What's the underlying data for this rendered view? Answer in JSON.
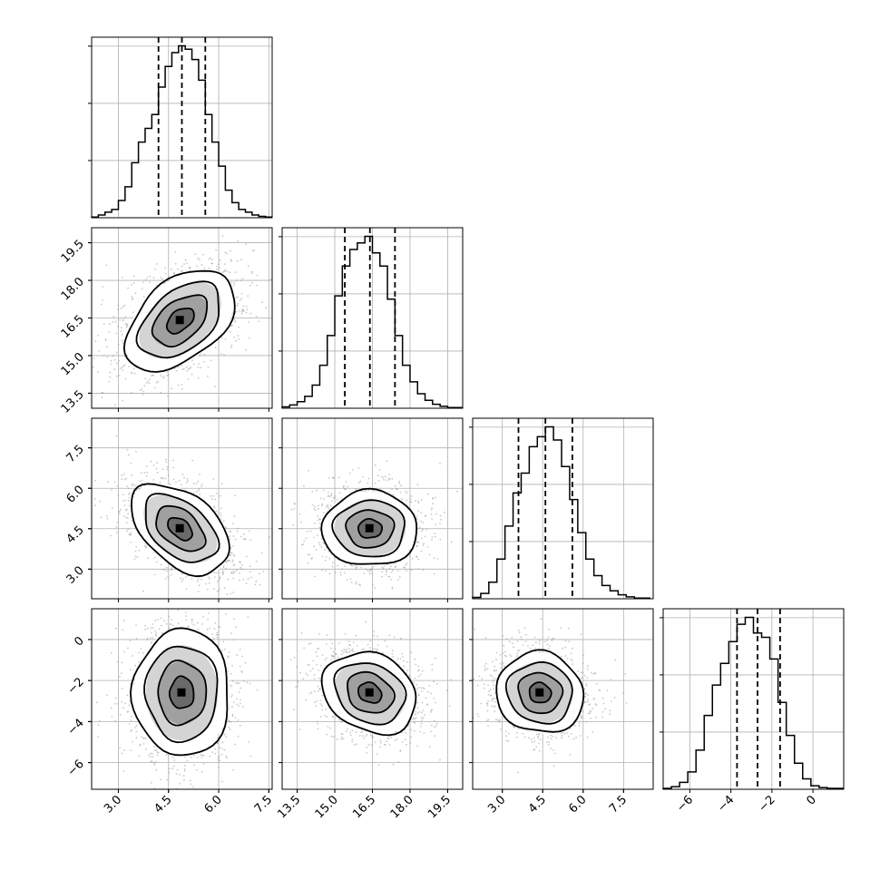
{
  "chart_data": {
    "type": "corner",
    "grid": true,
    "colors": {
      "lines": "#000000",
      "grid": "#b0b0b0",
      "scatter": "#9a9a9a",
      "density_max": "#000000",
      "background": "#ffffff"
    },
    "parameters": [
      {
        "range": [
          2.2,
          7.6
        ],
        "ticks": [
          "3.0",
          "4.5",
          "6.0",
          "7.5"
        ],
        "tick_values": [
          3.0,
          4.5,
          6.0,
          7.5
        ],
        "quantiles": [
          4.2,
          4.9,
          5.6
        ],
        "hist_bins": [
          2.2,
          2.4,
          2.6,
          2.8,
          3.0,
          3.2,
          3.4,
          3.6,
          3.8,
          4.0,
          4.2,
          4.4,
          4.6,
          4.8,
          5.0,
          5.2,
          5.4,
          5.6,
          5.8,
          6.0,
          6.2,
          6.4,
          6.6,
          6.8,
          7.0,
          7.2,
          7.4,
          7.6
        ],
        "hist_counts": [
          1,
          4,
          8,
          12,
          25,
          45,
          80,
          110,
          130,
          150,
          190,
          220,
          240,
          250,
          245,
          230,
          200,
          150,
          110,
          75,
          40,
          22,
          12,
          8,
          4,
          2,
          1
        ]
      },
      {
        "range": [
          12.9,
          20.1
        ],
        "ticks": [
          "13.5",
          "15.0",
          "16.5",
          "18.0",
          "19.5"
        ],
        "tick_values": [
          13.5,
          15.0,
          16.5,
          18.0,
          19.5
        ],
        "quantiles": [
          15.4,
          16.4,
          17.4
        ],
        "hist_bins": [
          12.9,
          13.2,
          13.5,
          13.8,
          14.1,
          14.4,
          14.7,
          15.0,
          15.3,
          15.6,
          15.9,
          16.2,
          16.5,
          16.8,
          17.1,
          17.4,
          17.7,
          18.0,
          18.3,
          18.6,
          18.9,
          19.2,
          19.5,
          19.8,
          20.1
        ],
        "hist_counts": [
          2,
          5,
          10,
          18,
          35,
          65,
          110,
          170,
          215,
          240,
          250,
          260,
          235,
          215,
          165,
          110,
          65,
          40,
          22,
          12,
          6,
          3,
          1,
          1
        ]
      },
      {
        "range": [
          1.9,
          8.6
        ],
        "ticks": [
          "3.0",
          "4.5",
          "6.0",
          "7.5"
        ],
        "tick_values": [
          3.0,
          4.5,
          6.0,
          7.5
        ],
        "quantiles": [
          3.6,
          4.6,
          5.6
        ],
        "hist_bins": [
          1.9,
          2.2,
          2.5,
          2.8,
          3.1,
          3.4,
          3.7,
          4.0,
          4.3,
          4.6,
          4.9,
          5.2,
          5.5,
          5.8,
          6.1,
          6.4,
          6.7,
          7.0,
          7.3,
          7.6,
          7.9,
          8.2,
          8.5
        ],
        "hist_counts": [
          2,
          8,
          25,
          60,
          110,
          160,
          190,
          230,
          245,
          260,
          240,
          200,
          150,
          100,
          60,
          35,
          20,
          12,
          6,
          3,
          1,
          1
        ]
      },
      {
        "range": [
          -7.3,
          1.5
        ],
        "ticks": [
          "−6",
          "−4",
          "−2",
          "0"
        ],
        "tick_values": [
          -6,
          -4,
          -2,
          0
        ],
        "quantiles": [
          -3.7,
          -2.7,
          -1.6
        ],
        "hist_bins": [
          -7.3,
          -6.9,
          -6.5,
          -6.1,
          -5.7,
          -5.3,
          -4.9,
          -4.5,
          -4.1,
          -3.7,
          -3.3,
          -2.9,
          -2.5,
          -2.1,
          -1.7,
          -1.3,
          -0.9,
          -0.5,
          -0.1,
          0.3,
          0.7,
          1.1,
          1.5
        ],
        "hist_counts": [
          1,
          3,
          8,
          20,
          45,
          85,
          120,
          145,
          170,
          190,
          198,
          180,
          175,
          150,
          100,
          62,
          30,
          12,
          4,
          2,
          1,
          1
        ]
      }
    ],
    "pairs": [
      {
        "x": 0,
        "y": 1,
        "center": [
          4.85,
          16.4
        ],
        "rotation_deg": -40,
        "sigma": [
          0.95,
          0.58
        ]
      },
      {
        "x": 0,
        "y": 2,
        "center": [
          4.85,
          4.5
        ],
        "rotation_deg": 40,
        "sigma": [
          0.85,
          0.52
        ]
      },
      {
        "x": 1,
        "y": 2,
        "center": [
          16.4,
          4.5
        ],
        "rotation_deg": 0,
        "sigma": [
          0.95,
          0.75
        ]
      },
      {
        "x": 0,
        "y": 3,
        "center": [
          4.9,
          -2.6
        ],
        "rotation_deg": 0,
        "sigma": [
          0.72,
          0.95
        ]
      },
      {
        "x": 1,
        "y": 3,
        "center": [
          16.4,
          -2.6
        ],
        "rotation_deg": 28,
        "sigma": [
          0.98,
          0.76
        ]
      },
      {
        "x": 2,
        "y": 3,
        "center": [
          4.4,
          -2.6
        ],
        "rotation_deg": 22,
        "sigma": [
          0.82,
          0.74
        ]
      }
    ],
    "contour_levels_sigma": [
      0.5,
      1.0,
      1.5,
      2.0
    ]
  }
}
